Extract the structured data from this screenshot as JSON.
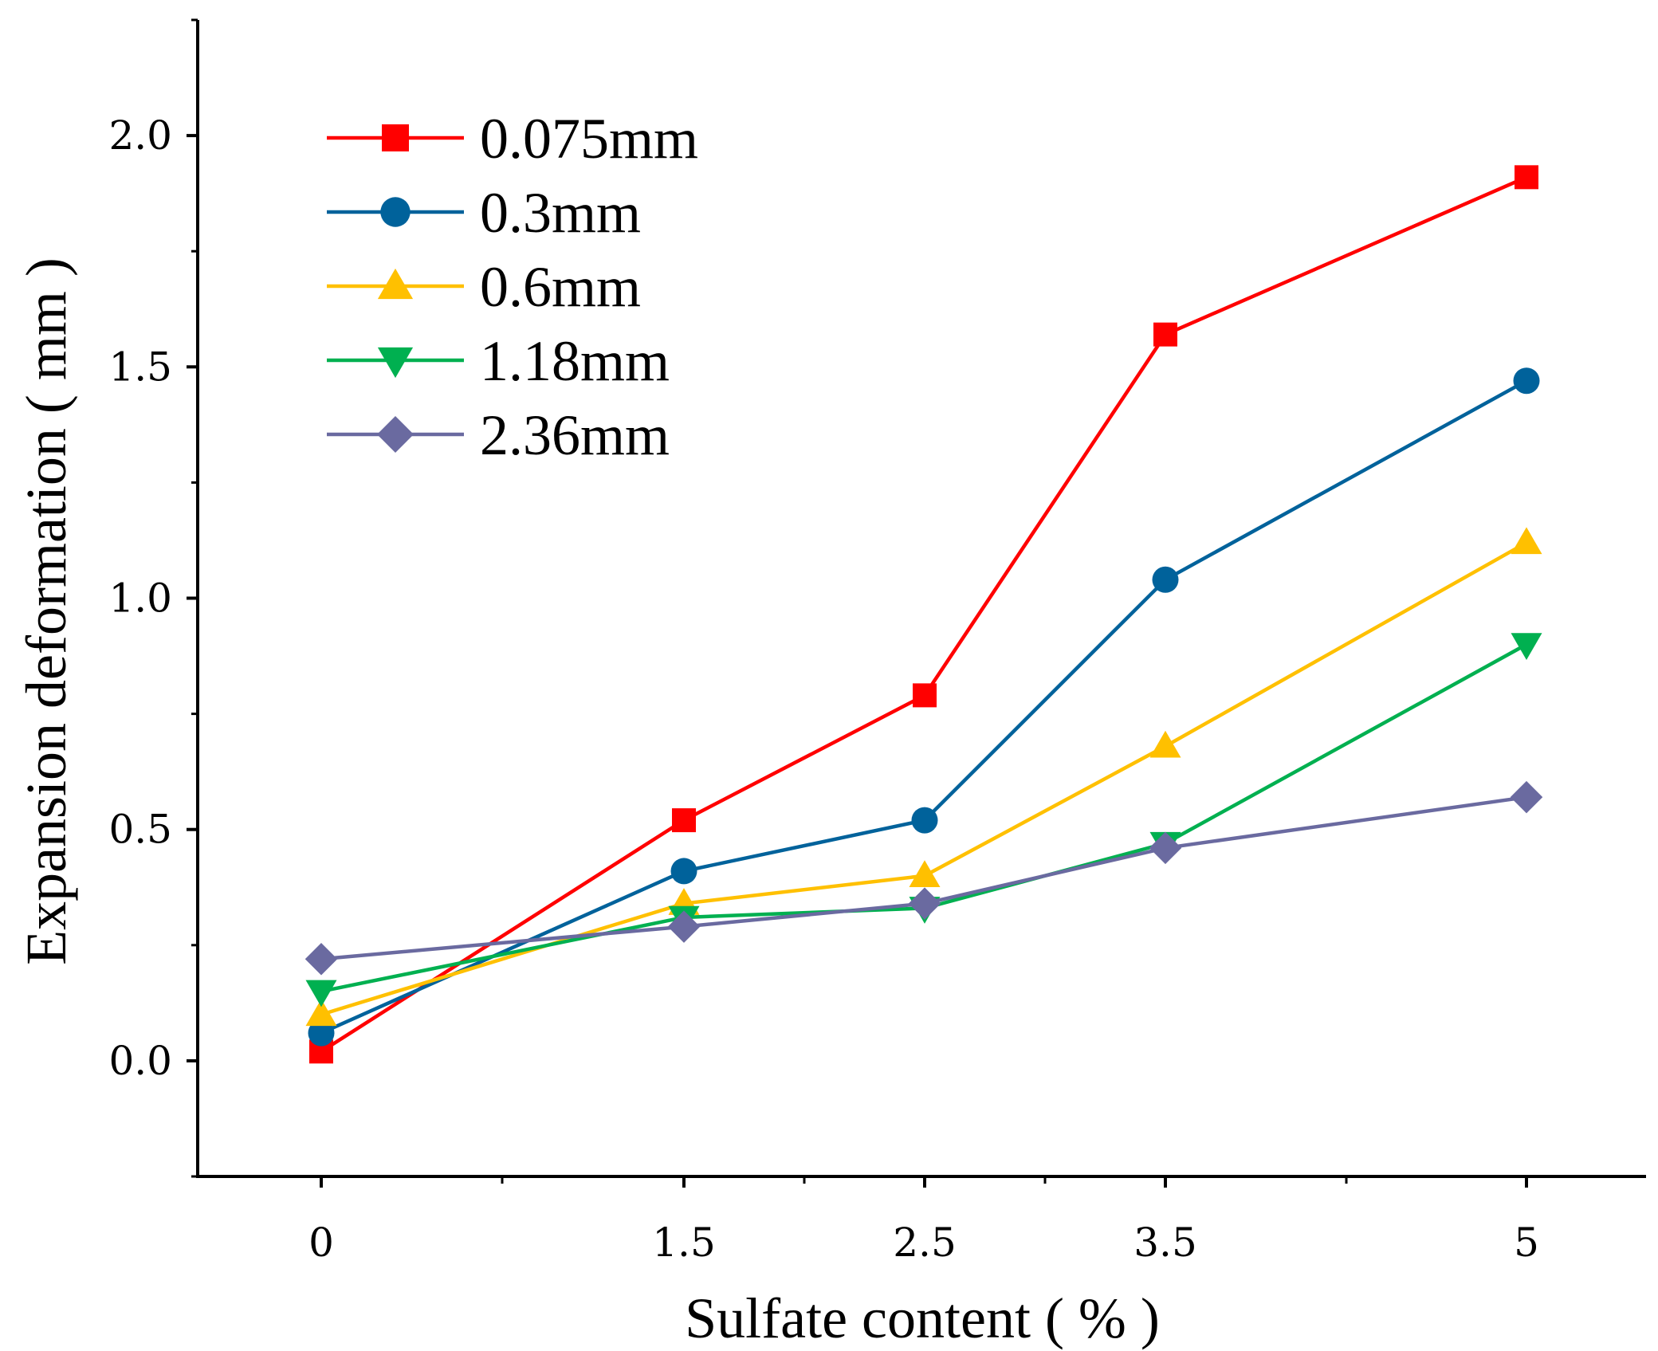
{
  "chart_data": {
    "type": "line",
    "title": "",
    "xlabel": "Sulfate content ( % )",
    "ylabel": "Expansion deformation ( mm )",
    "categories": [
      "0",
      "1.5",
      "2.5",
      "3.5",
      "5"
    ],
    "y_ticks": [
      "0.0",
      "0.5",
      "1.0",
      "1.5",
      "2.0"
    ],
    "ylim": [
      -0.25,
      2.25
    ],
    "grid": false,
    "legend_position": "top-left",
    "series": [
      {
        "name": "0.075mm",
        "color": "#ff0000",
        "marker": "square",
        "values": [
          0.02,
          0.52,
          0.79,
          1.57,
          1.91
        ]
      },
      {
        "name": "0.3mm",
        "color": "#00629b",
        "marker": "circle",
        "values": [
          0.06,
          0.41,
          0.52,
          1.04,
          1.47
        ]
      },
      {
        "name": "0.6mm",
        "color": "#ffc000",
        "marker": "triangle-up",
        "values": [
          0.1,
          0.34,
          0.4,
          0.68,
          1.12
        ]
      },
      {
        "name": "1.18mm",
        "color": "#00b050",
        "marker": "triangle-down",
        "values": [
          0.15,
          0.31,
          0.33,
          0.47,
          0.9
        ]
      },
      {
        "name": "2.36mm",
        "color": "#6a6aa0",
        "marker": "diamond",
        "values": [
          0.22,
          0.29,
          0.34,
          0.46,
          0.57
        ]
      }
    ]
  }
}
